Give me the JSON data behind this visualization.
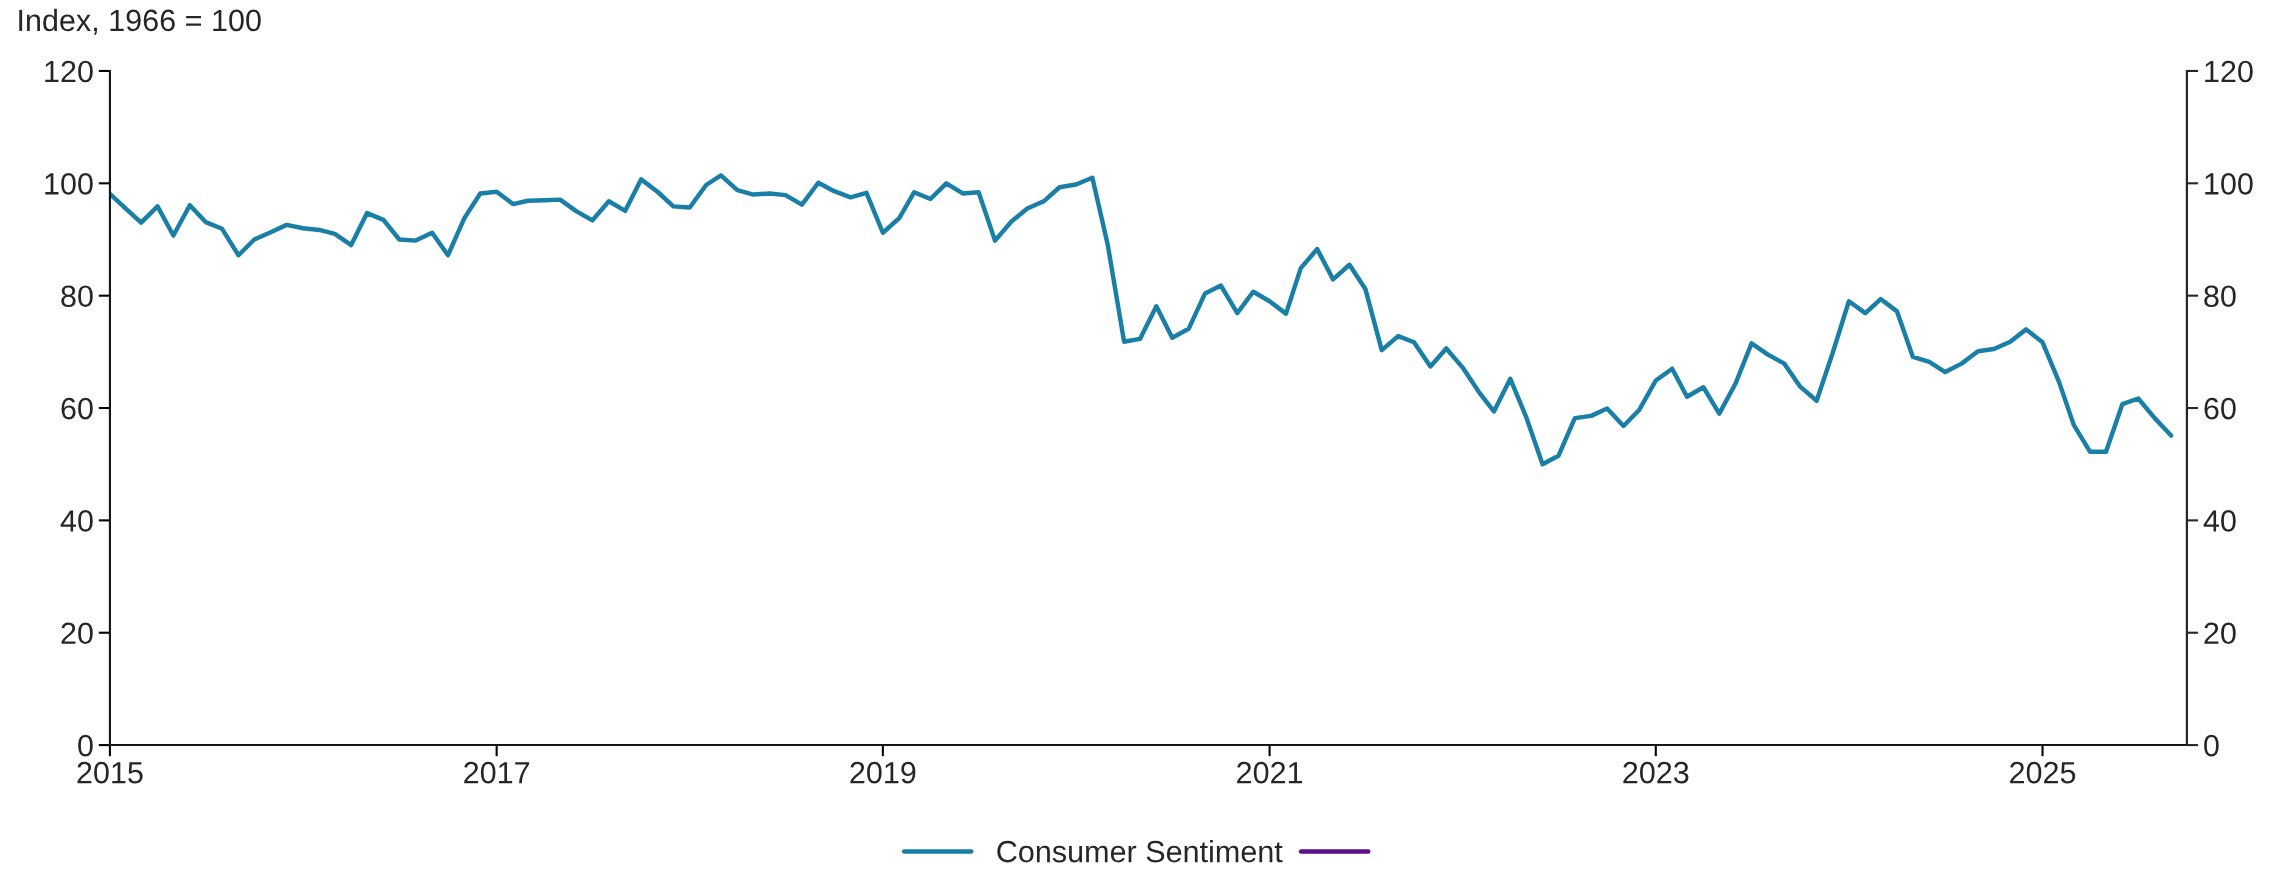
{
  "chart_data": {
    "type": "line",
    "ylabel": "Index, 1966 = 100",
    "x": [
      "2015-01",
      "2015-02",
      "2015-03",
      "2015-04",
      "2015-05",
      "2015-06",
      "2015-07",
      "2015-08",
      "2015-09",
      "2015-10",
      "2015-11",
      "2015-12",
      "2016-01",
      "2016-02",
      "2016-03",
      "2016-04",
      "2016-05",
      "2016-06",
      "2016-07",
      "2016-08",
      "2016-09",
      "2016-10",
      "2016-11",
      "2016-12",
      "2017-01",
      "2017-02",
      "2017-03",
      "2017-04",
      "2017-05",
      "2017-06",
      "2017-07",
      "2017-08",
      "2017-09",
      "2017-10",
      "2017-11",
      "2017-12",
      "2018-01",
      "2018-02",
      "2018-03",
      "2018-04",
      "2018-05",
      "2018-06",
      "2018-07",
      "2018-08",
      "2018-09",
      "2018-10",
      "2018-11",
      "2018-12",
      "2019-01",
      "2019-02",
      "2019-03",
      "2019-04",
      "2019-05",
      "2019-06",
      "2019-07",
      "2019-08",
      "2019-09",
      "2019-10",
      "2019-11",
      "2019-12",
      "2020-01",
      "2020-02",
      "2020-03",
      "2020-04",
      "2020-05",
      "2020-06",
      "2020-07",
      "2020-08",
      "2020-09",
      "2020-10",
      "2020-11",
      "2020-12",
      "2021-01",
      "2021-02",
      "2021-03",
      "2021-04",
      "2021-05",
      "2021-06",
      "2021-07",
      "2021-08",
      "2021-09",
      "2021-10",
      "2021-11",
      "2021-12",
      "2022-01",
      "2022-02",
      "2022-03",
      "2022-04",
      "2022-05",
      "2022-06",
      "2022-07",
      "2022-08",
      "2022-09",
      "2022-10",
      "2022-11",
      "2022-12",
      "2023-01",
      "2023-02",
      "2023-03",
      "2023-04",
      "2023-05",
      "2023-06",
      "2023-07",
      "2023-08",
      "2023-09",
      "2023-10",
      "2023-11",
      "2023-12",
      "2024-01",
      "2024-02",
      "2024-03",
      "2024-04",
      "2024-05",
      "2024-06",
      "2024-07",
      "2024-08",
      "2024-09",
      "2024-10",
      "2024-11",
      "2024-12",
      "2025-01",
      "2025-02",
      "2025-03",
      "2025-04",
      "2025-05",
      "2025-06",
      "2025-07",
      "2025-08",
      "2025-09"
    ],
    "xlim": [
      "2015-01-01",
      "2025-10-01"
    ],
    "xticks": [
      {
        "value": "2015-01-01",
        "label": "2015"
      },
      {
        "value": "2017-01-01",
        "label": "2017"
      },
      {
        "value": "2019-01-01",
        "label": "2019"
      },
      {
        "value": "2021-01-01",
        "label": "2021"
      },
      {
        "value": "2023-01-01",
        "label": "2023"
      },
      {
        "value": "2025-01-01",
        "label": "2025"
      }
    ],
    "ylim": [
      0,
      120
    ],
    "yticks": [
      0,
      20,
      40,
      60,
      80,
      100,
      120
    ],
    "y2lim": [
      0,
      120
    ],
    "y2ticks": [
      0,
      20,
      40,
      60,
      80,
      100,
      120
    ],
    "grid": false,
    "legend": "bottom",
    "marker": "none",
    "line_style": "solid",
    "series": [
      {
        "name": "Consumer Sentiment",
        "color": "#1a7fa6",
        "values": [
          98.1,
          95.4,
          93.0,
          95.9,
          90.7,
          96.1,
          93.1,
          91.9,
          87.2,
          90.0,
          91.3,
          92.6,
          92.0,
          91.7,
          91.0,
          89.0,
          94.7,
          93.5,
          90.0,
          89.8,
          91.2,
          87.2,
          93.8,
          98.2,
          98.5,
          96.3,
          96.9,
          97.0,
          97.1,
          95.0,
          93.4,
          96.8,
          95.1,
          100.7,
          98.5,
          95.9,
          95.7,
          99.7,
          101.4,
          98.8,
          98.0,
          98.2,
          97.9,
          96.2,
          100.1,
          98.6,
          97.5,
          98.3,
          91.2,
          93.8,
          98.4,
          97.2,
          100.0,
          98.2,
          98.4,
          89.8,
          93.2,
          95.5,
          96.8,
          99.3,
          99.8,
          101.0,
          89.1,
          71.8,
          72.3,
          78.1,
          72.5,
          74.1,
          80.4,
          81.8,
          76.9,
          80.7,
          79.0,
          76.8,
          84.9,
          88.3,
          82.9,
          85.5,
          81.2,
          70.3,
          72.8,
          71.7,
          67.4,
          70.6,
          67.2,
          62.8,
          59.4,
          65.2,
          58.4,
          50.0,
          51.5,
          58.2,
          58.6,
          59.9,
          56.8,
          59.7,
          64.9,
          67.0,
          62.0,
          63.7,
          59.0,
          64.4,
          71.5,
          69.5,
          67.9,
          63.8,
          61.3,
          69.7,
          79.0,
          76.9,
          79.4,
          77.2,
          69.1,
          68.2,
          66.4,
          67.9,
          70.1,
          70.5,
          71.8,
          74.0,
          71.7,
          64.7,
          57.0,
          52.2,
          52.2,
          60.7,
          61.7,
          58.2,
          55.1
        ]
      },
      {
        "color": "#5b0f8c",
        "values": [
          null,
          null,
          null,
          null,
          null,
          null,
          null,
          null,
          null,
          null,
          null,
          null,
          null,
          null,
          null,
          null,
          null,
          null,
          null,
          null,
          null,
          null,
          null,
          null,
          null,
          null,
          null,
          null,
          null,
          null,
          null,
          null,
          null,
          null,
          null,
          null,
          null,
          null,
          null,
          null,
          null,
          null,
          null,
          null,
          null,
          null,
          null,
          null,
          null,
          null,
          null,
          null,
          null,
          null,
          null,
          null,
          null,
          null,
          null,
          null,
          null,
          null,
          null,
          null,
          null,
          null,
          null,
          null,
          null,
          null,
          null,
          null,
          null,
          null,
          null,
          null,
          null,
          null,
          null,
          null,
          null,
          null,
          null,
          null,
          null,
          null,
          null,
          null,
          null,
          null,
          null,
          null,
          null,
          null,
          null,
          null,
          null,
          null,
          null,
          null,
          null,
          null,
          null,
          null,
          null,
          null,
          null,
          null,
          null,
          null,
          null,
          null,
          null,
          null,
          null,
          null,
          null,
          null,
          null,
          null,
          null,
          null,
          null,
          null,
          null,
          null,
          null,
          null,
          null
        ]
      }
    ]
  }
}
